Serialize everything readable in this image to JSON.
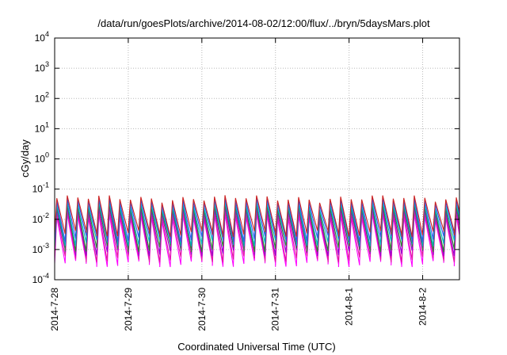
{
  "chart_data": {
    "type": "line",
    "title": "/data/run/goesPlots/archive/2014-08-02/12:00/flux/../bryn/5daysMars.plot",
    "xlabel": "Coordinated Universal Time (UTC)",
    "ylabel": "cGy/day",
    "yscale": "log",
    "ylim": [
      0.0001,
      10000
    ],
    "y_ticks": [
      {
        "base": "10",
        "exp": "-4",
        "value": 0.0001
      },
      {
        "base": "10",
        "exp": "-3",
        "value": 0.001
      },
      {
        "base": "10",
        "exp": "-2",
        "value": 0.01
      },
      {
        "base": "10",
        "exp": "-1",
        "value": 0.1
      },
      {
        "base": "10",
        "exp": "0",
        "value": 1
      },
      {
        "base": "10",
        "exp": "1",
        "value": 10
      },
      {
        "base": "10",
        "exp": "2",
        "value": 100
      },
      {
        "base": "10",
        "exp": "3",
        "value": 1000
      },
      {
        "base": "10",
        "exp": "4",
        "value": 10000
      }
    ],
    "xlim": [
      "2014-07-28T00:00",
      "2014-08-02T12:00"
    ],
    "x_ticks": [
      {
        "label": "2014-7-28",
        "date": "2014-07-28"
      },
      {
        "label": "2014-7-29",
        "date": "2014-07-29"
      },
      {
        "label": "2014-7-30",
        "date": "2014-07-30"
      },
      {
        "label": "2014-7-31",
        "date": "2014-07-31"
      },
      {
        "label": "2014-8-1",
        "date": "2014-08-01"
      },
      {
        "label": "2014-8-2",
        "date": "2014-08-02"
      }
    ],
    "grid": true,
    "legend": "none",
    "cycles_per_day": 7,
    "series": [
      {
        "color": "#ff00ff",
        "peak": 0.012,
        "trough": 0.00035
      },
      {
        "color": "#e0199e",
        "peak": 0.015,
        "trough": 0.0005
      },
      {
        "color": "#9400d3",
        "peak": 0.02,
        "trough": 0.0008
      },
      {
        "color": "#2b8a2b",
        "peak": 0.025,
        "trough": 0.0011
      },
      {
        "color": "#00b4c8",
        "peak": 0.03,
        "trough": 0.0017
      },
      {
        "color": "#3355ee",
        "peak": 0.04,
        "trough": 0.0024
      },
      {
        "color": "#cc2222",
        "peak": 0.05,
        "trough": 0.0035
      }
    ]
  }
}
